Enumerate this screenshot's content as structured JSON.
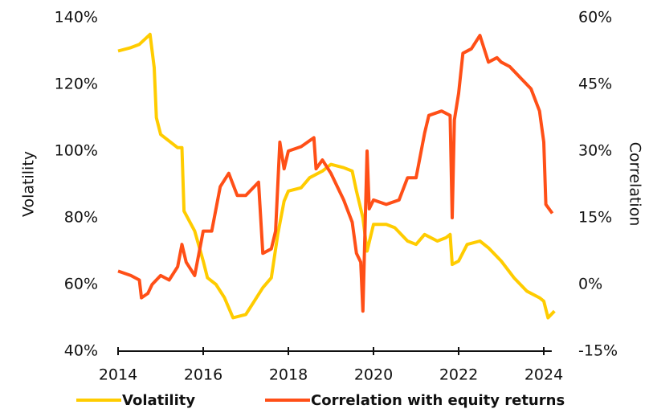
{
  "chart_data": {
    "type": "line",
    "ylabel": "Volatility",
    "y2label": "Correlation",
    "xlim": [
      2014,
      2024.3
    ],
    "xticks": [
      2014,
      2016,
      2018,
      2020,
      2022,
      2024
    ],
    "ylim": [
      40,
      140
    ],
    "yticks": [
      {
        "value": 40,
        "label": "40%"
      },
      {
        "value": 60,
        "label": "60%"
      },
      {
        "value": 80,
        "label": "80%"
      },
      {
        "value": 100,
        "label": "100%"
      },
      {
        "value": 120,
        "label": "120%"
      },
      {
        "value": 140,
        "label": "140%"
      }
    ],
    "y2lim": [
      -15,
      60
    ],
    "y2ticks": [
      {
        "value": -15,
        "label": "-15%"
      },
      {
        "value": 0,
        "label": "0%"
      },
      {
        "value": 15,
        "label": "15%"
      },
      {
        "value": 30,
        "label": "30%"
      },
      {
        "value": 45,
        "label": "45%"
      },
      {
        "value": 60,
        "label": "60%"
      }
    ],
    "series": [
      {
        "name": "Volatility",
        "color": "#ffcc00",
        "x": [
          2014.0,
          2014.3,
          2014.5,
          2014.75,
          2014.85,
          2014.9,
          2015.0,
          2015.2,
          2015.4,
          2015.5,
          2015.55,
          2015.8,
          2016.0,
          2016.1,
          2016.3,
          2016.5,
          2016.7,
          2017.0,
          2017.2,
          2017.4,
          2017.6,
          2017.75,
          2017.9,
          2018.0,
          2018.3,
          2018.5,
          2018.8,
          2019.0,
          2019.3,
          2019.5,
          2019.6,
          2019.75,
          2019.85,
          2020.0,
          2020.3,
          2020.5,
          2020.8,
          2021.0,
          2021.2,
          2021.5,
          2021.7,
          2021.8,
          2021.85,
          2022.0,
          2022.2,
          2022.5,
          2022.7,
          2023.0,
          2023.3,
          2023.6,
          2023.9,
          2024.0,
          2024.1,
          2024.25
        ],
        "values": [
          130,
          131,
          132,
          135,
          125,
          110,
          105,
          103,
          101,
          101,
          82,
          76,
          67,
          62,
          60,
          56,
          50,
          51,
          55,
          59,
          62,
          75,
          85,
          88,
          89,
          92,
          94,
          96,
          95,
          94,
          88,
          80,
          70,
          78,
          78,
          77,
          73,
          72,
          75,
          73,
          74,
          75,
          66,
          67,
          72,
          73,
          71,
          67,
          62,
          58,
          56,
          55,
          50,
          52
        ]
      },
      {
        "name": "Correlation with equity returns",
        "color": "#ff4f17",
        "axis": "y2",
        "x": [
          2014.0,
          2014.3,
          2014.5,
          2014.55,
          2014.7,
          2014.8,
          2015.0,
          2015.2,
          2015.4,
          2015.5,
          2015.6,
          2015.8,
          2016.0,
          2016.2,
          2016.4,
          2016.6,
          2016.8,
          2017.0,
          2017.3,
          2017.4,
          2017.6,
          2017.7,
          2017.8,
          2017.9,
          2018.0,
          2018.3,
          2018.6,
          2018.65,
          2018.8,
          2019.0,
          2019.3,
          2019.5,
          2019.6,
          2019.7,
          2019.75,
          2019.85,
          2019.9,
          2020.0,
          2020.3,
          2020.6,
          2020.8,
          2021.0,
          2021.2,
          2021.3,
          2021.6,
          2021.8,
          2021.85,
          2021.9,
          2022.0,
          2022.1,
          2022.3,
          2022.5,
          2022.7,
          2022.9,
          2023.0,
          2023.2,
          2023.5,
          2023.7,
          2023.9,
          2024.0,
          2024.05,
          2024.2
        ],
        "values": [
          3,
          2,
          1,
          -3,
          -2,
          0,
          2,
          1,
          4,
          9,
          5,
          2,
          12,
          12,
          22,
          25,
          20,
          20,
          23,
          7,
          8,
          12,
          32,
          26,
          30,
          31,
          33,
          26,
          28,
          25,
          19,
          14,
          7,
          5,
          -6,
          30,
          17,
          19,
          18,
          19,
          24,
          24,
          34,
          38,
          39,
          38,
          15,
          37,
          43,
          52,
          53,
          56,
          50,
          51,
          50,
          49,
          46,
          44,
          39,
          32,
          18,
          16
        ]
      }
    ]
  }
}
